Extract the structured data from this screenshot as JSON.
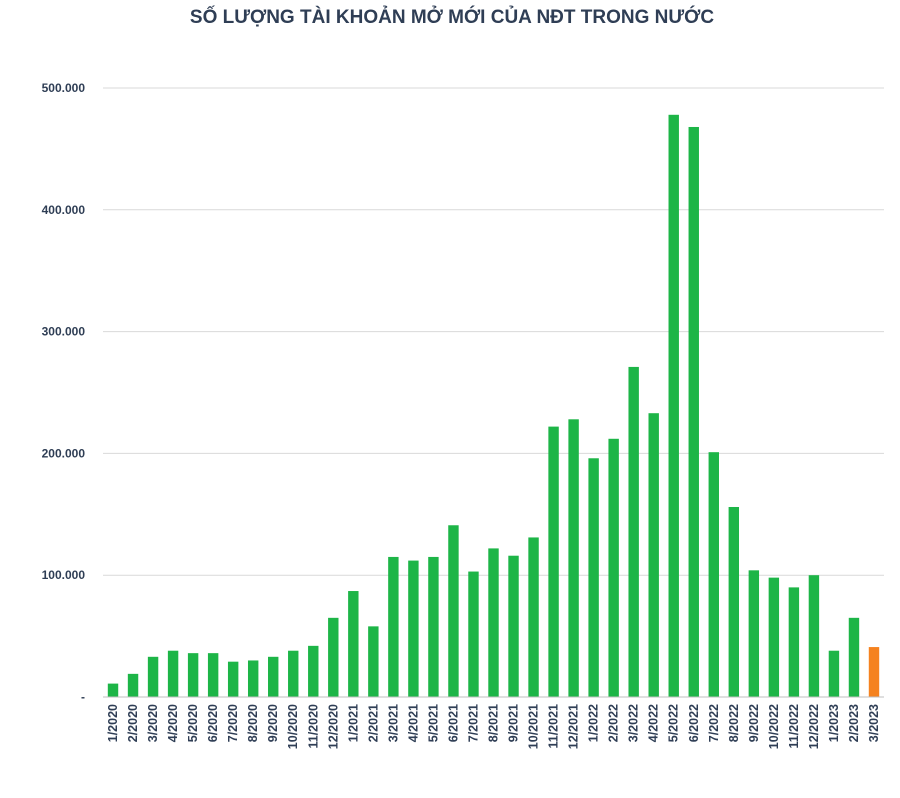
{
  "chart_data": {
    "type": "bar",
    "title": "SỐ LƯỢNG TÀI KHOẢN MỞ MỚI CỦA NĐT TRONG NƯỚC",
    "xlabel": "",
    "ylabel": "",
    "ylim": [
      0,
      500000
    ],
    "yticks": [
      0,
      100000,
      200000,
      300000,
      400000,
      500000
    ],
    "ytick_labels": [
      "-",
      "100.000",
      "200.000",
      "300.000",
      "400.000",
      "500.000"
    ],
    "grid": true,
    "legend": "none",
    "categories": [
      "1/2020",
      "2/2020",
      "3/2020",
      "4/2020",
      "5/2020",
      "6/2020",
      "7/2020",
      "8/2020",
      "9/2020",
      "10/2020",
      "11/2020",
      "12/2020",
      "1/2021",
      "2/2021",
      "3/2021",
      "4/2021",
      "5/2021",
      "6/2021",
      "7/2021",
      "8/2021",
      "9/2021",
      "10/2021",
      "11/2021",
      "12/2021",
      "1/2022",
      "2/2022",
      "3/2022",
      "4/2022",
      "5/2022",
      "6/2022",
      "7/2022",
      "8/2022",
      "9/2022",
      "10/2022",
      "11/2022",
      "12/2022",
      "1/2023",
      "2/2023",
      "3/2023"
    ],
    "values": [
      11000,
      19000,
      33000,
      38000,
      36000,
      36000,
      29000,
      30000,
      33000,
      38000,
      42000,
      65000,
      87000,
      58000,
      115000,
      112000,
      115000,
      141000,
      103000,
      122000,
      116000,
      131000,
      222000,
      228000,
      196000,
      212000,
      271000,
      233000,
      478000,
      468000,
      201000,
      156000,
      104000,
      98000,
      90000,
      100000,
      38000,
      65000,
      41000
    ],
    "bar_color": "#1db547",
    "highlight_color": "#f5821f",
    "highlight_category": "3/2023"
  }
}
